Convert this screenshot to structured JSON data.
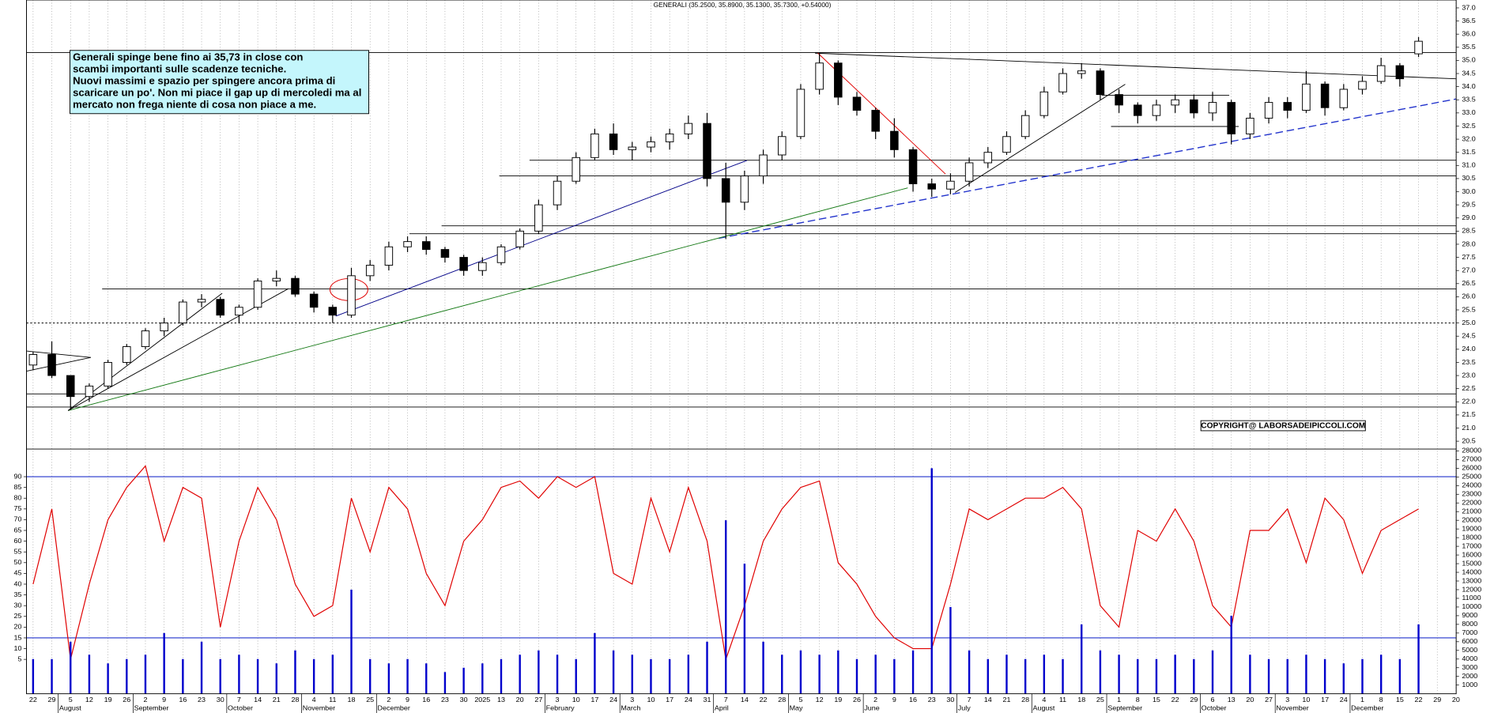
{
  "chart_data": [
    {
      "type": "candlestick",
      "title": "GENERALI (35.2500, 35.8900, 35.1300, 35.7300, +0.54000)",
      "categories": [
        "22",
        "29",
        "5",
        "12",
        "19",
        "26",
        "2",
        "9",
        "16",
        "23",
        "30",
        "7",
        "14",
        "21",
        "28",
        "4",
        "11",
        "18",
        "25",
        "2",
        "9",
        "16",
        "23",
        "30",
        "2025",
        "13",
        "20",
        "27",
        "3",
        "10",
        "17",
        "24",
        "3",
        "10",
        "17",
        "24",
        "31",
        "7",
        "14",
        "22",
        "28",
        "5",
        "12",
        "19",
        "26",
        "2",
        "9",
        "16",
        "23",
        "30",
        "7",
        "14",
        "21",
        "28",
        "4",
        "11",
        "18",
        "25",
        "1",
        "8",
        "15",
        "22",
        "29",
        "6",
        "13",
        "20",
        "27",
        "3",
        "10",
        "17",
        "24",
        "1",
        "8",
        "15",
        "22",
        "29",
        "20"
      ],
      "month_labels": [
        null,
        null,
        "August",
        null,
        null,
        null,
        "September",
        null,
        null,
        null,
        null,
        "October",
        null,
        null,
        null,
        "November",
        null,
        null,
        null,
        "December",
        null,
        null,
        null,
        null,
        null,
        null,
        null,
        null,
        "February",
        null,
        null,
        null,
        "March",
        null,
        null,
        null,
        null,
        "April",
        null,
        null,
        null,
        "May",
        null,
        null,
        null,
        "June",
        null,
        null,
        null,
        null,
        "July",
        null,
        null,
        null,
        "August",
        null,
        null,
        null,
        "September",
        null,
        null,
        null,
        null,
        "October",
        null,
        null,
        null,
        "November",
        null,
        null,
        null,
        "December",
        null,
        null,
        null,
        null,
        null
      ],
      "open": [
        23.4,
        23.8,
        23.0,
        22.2,
        22.6,
        23.5,
        24.1,
        24.7,
        25.0,
        25.8,
        25.9,
        25.3,
        25.6,
        26.6,
        26.7,
        26.1,
        25.6,
        25.3,
        26.8,
        27.2,
        27.9,
        28.1,
        27.8,
        27.5,
        27.0,
        27.3,
        27.9,
        28.5,
        29.5,
        30.4,
        31.3,
        32.2,
        31.6,
        31.7,
        31.9,
        32.2,
        32.6,
        30.5,
        29.6,
        30.6,
        31.4,
        32.1,
        33.9,
        34.9,
        33.6,
        33.1,
        32.3,
        31.6,
        30.3,
        30.1,
        30.4,
        31.1,
        31.5,
        32.1,
        32.9,
        33.8,
        34.5,
        34.6,
        33.7,
        33.3,
        32.9,
        33.3,
        33.5,
        33.0,
        33.4,
        32.2,
        32.8,
        33.4,
        33.1,
        34.1,
        33.2,
        33.9,
        34.2,
        34.8,
        35.25,
        null,
        null
      ],
      "high": [
        23.9,
        24.3,
        23.0,
        22.7,
        23.6,
        24.2,
        24.8,
        25.2,
        25.9,
        26.1,
        26.0,
        25.7,
        26.7,
        27.0,
        26.8,
        26.2,
        25.7,
        27.1,
        27.4,
        28.1,
        28.3,
        28.3,
        27.9,
        27.6,
        27.5,
        28.0,
        28.6,
        29.7,
        30.6,
        31.5,
        32.4,
        32.6,
        31.9,
        32.1,
        32.4,
        32.9,
        33.0,
        31.1,
        30.8,
        31.6,
        32.3,
        34.1,
        35.3,
        35.0,
        33.8,
        33.2,
        32.8,
        31.7,
        30.5,
        30.7,
        31.3,
        31.7,
        32.3,
        33.1,
        34.0,
        34.7,
        34.9,
        34.7,
        33.9,
        33.4,
        33.5,
        33.7,
        33.7,
        33.8,
        33.5,
        33.0,
        33.6,
        33.6,
        34.6,
        34.2,
        34.1,
        34.4,
        35.1,
        34.9,
        35.89,
        null,
        null
      ],
      "low": [
        23.2,
        22.9,
        21.7,
        22.0,
        22.5,
        23.4,
        24.0,
        24.5,
        24.9,
        25.6,
        25.2,
        25.0,
        25.5,
        26.4,
        26.0,
        25.4,
        25.0,
        25.2,
        26.6,
        27.0,
        27.7,
        27.6,
        27.3,
        26.8,
        26.8,
        27.2,
        27.8,
        28.4,
        29.3,
        30.3,
        31.2,
        31.4,
        31.2,
        31.5,
        31.6,
        32.0,
        30.2,
        28.2,
        29.3,
        30.3,
        31.2,
        32.0,
        33.7,
        33.3,
        32.9,
        32.0,
        31.3,
        30.0,
        29.8,
        29.9,
        30.2,
        30.9,
        31.4,
        32.0,
        32.8,
        33.7,
        34.3,
        33.5,
        33.0,
        32.6,
        32.7,
        33.0,
        32.8,
        32.7,
        31.8,
        32.0,
        32.6,
        32.8,
        33.0,
        32.9,
        33.1,
        33.7,
        34.1,
        34.0,
        35.13,
        null,
        null
      ],
      "close": [
        23.8,
        23.0,
        22.2,
        22.6,
        23.5,
        24.1,
        24.7,
        25.0,
        25.8,
        25.9,
        25.3,
        25.6,
        26.6,
        26.7,
        26.1,
        25.6,
        25.3,
        26.8,
        27.2,
        27.9,
        28.1,
        27.8,
        27.5,
        27.0,
        27.3,
        27.9,
        28.5,
        29.5,
        30.4,
        31.3,
        32.2,
        31.6,
        31.7,
        31.9,
        32.2,
        32.6,
        30.5,
        29.6,
        30.6,
        31.4,
        32.1,
        33.9,
        34.9,
        33.6,
        33.1,
        32.3,
        31.6,
        30.3,
        30.1,
        30.4,
        31.1,
        31.5,
        32.1,
        32.9,
        33.8,
        34.5,
        34.6,
        33.7,
        33.3,
        32.9,
        33.3,
        33.5,
        33.0,
        33.4,
        32.2,
        32.8,
        33.4,
        33.1,
        34.1,
        33.2,
        33.9,
        34.2,
        34.8,
        34.3,
        35.73,
        null,
        null
      ],
      "ylim": [
        20.2,
        37.3
      ],
      "yticks": [
        {
          "value": 37,
          "label": "37.0"
        },
        {
          "value": 36.5,
          "label": "36.5"
        },
        {
          "value": 36,
          "label": "36.0"
        },
        {
          "value": 35.5,
          "label": "35.5"
        },
        {
          "value": 35,
          "label": "35.0"
        },
        {
          "value": 34.5,
          "label": "34.5"
        },
        {
          "value": 34,
          "label": "34.0"
        },
        {
          "value": 33.5,
          "label": "33.5"
        },
        {
          "value": 33,
          "label": "33.0"
        },
        {
          "value": 32.5,
          "label": "32.5"
        },
        {
          "value": 32,
          "label": "32.0"
        },
        {
          "value": 31.5,
          "label": "31.5"
        },
        {
          "value": 31,
          "label": "31.0"
        },
        {
          "value": 30.5,
          "label": "30.5"
        },
        {
          "value": 30,
          "label": "30.0"
        },
        {
          "value": 29.5,
          "label": "29.5"
        },
        {
          "value": 29,
          "label": "29.0"
        },
        {
          "value": 28.5,
          "label": "28.5"
        },
        {
          "value": 28,
          "label": "28.0"
        },
        {
          "value": 27.5,
          "label": "27.5"
        },
        {
          "value": 27,
          "label": "27.0"
        },
        {
          "value": 26.5,
          "label": "26.5"
        },
        {
          "value": 26,
          "label": "26.0"
        },
        {
          "value": 25.5,
          "label": "25.5"
        },
        {
          "value": 25,
          "label": "25.0"
        },
        {
          "value": 24.5,
          "label": "24.5"
        },
        {
          "value": 24,
          "label": "24.0"
        },
        {
          "value": 23.5,
          "label": "23.5"
        },
        {
          "value": 23,
          "label": "23.0"
        },
        {
          "value": 22.5,
          "label": "22.5"
        },
        {
          "value": 22,
          "label": "22.0"
        },
        {
          "value": 21.5,
          "label": "21.5"
        },
        {
          "value": 21,
          "label": "21.0"
        },
        {
          "value": 20.5,
          "label": "20.5"
        }
      ],
      "levels": [
        35.3,
        31.2,
        30.6,
        28.7,
        28.4,
        26.3,
        25.0,
        22.3,
        21.8
      ],
      "note": [
        "Generali spinge bene fino ai 35,73 in close con",
        "scambi importanti sulle scadenze tecniche.",
        "Nuovi massimi e spazio per spingere ancora prima di",
        "scaricare un po'. Non mi piace il gap up di mercoledi ma al",
        "mercato non frega niente di cosa non piace a me."
      ],
      "copyright": "COPYRIGHT@ LABORSADEIPICCOLI.COM"
    },
    {
      "type": "indicator",
      "series": [
        {
          "type": "line",
          "color": "#e00000",
          "values": [
            40,
            75,
            5,
            40,
            70,
            85,
            95,
            60,
            85,
            80,
            20,
            60,
            85,
            70,
            40,
            25,
            30,
            80,
            55,
            85,
            75,
            45,
            30,
            60,
            70,
            85,
            88,
            80,
            90,
            85,
            90,
            45,
            40,
            80,
            55,
            85,
            60,
            5,
            30,
            60,
            75,
            85,
            88,
            50,
            40,
            25,
            15,
            10,
            10,
            40,
            75,
            70,
            75,
            80,
            80,
            85,
            75,
            30,
            20,
            65,
            60,
            75,
            60,
            30,
            20,
            65,
            65,
            75,
            50,
            80,
            70,
            45,
            65,
            70,
            75,
            null,
            null
          ]
        },
        {
          "type": "bar",
          "color": "#0000cc",
          "axis": "y2",
          "values": [
            4000,
            4000,
            6000,
            4500,
            3500,
            4000,
            4500,
            7000,
            4000,
            6000,
            4000,
            4500,
            4000,
            3500,
            5000,
            4000,
            4500,
            12000,
            4000,
            3500,
            4000,
            3500,
            2500,
            3000,
            3500,
            4000,
            4500,
            5000,
            4500,
            4000,
            7000,
            5000,
            4500,
            4000,
            4000,
            4500,
            6000,
            20000,
            15000,
            6000,
            4500,
            5000,
            4500,
            5000,
            4000,
            4500,
            4000,
            5000,
            26000,
            10000,
            5000,
            4000,
            4500,
            4000,
            4500,
            4000,
            8000,
            5000,
            4500,
            4000,
            4000,
            4500,
            4000,
            5000,
            9000,
            4500,
            4000,
            4000,
            4500,
            4000,
            3500,
            4000,
            4500,
            4000,
            8000,
            null,
            null
          ]
        }
      ],
      "ylim": [
        -11,
        102
      ],
      "yticks": [
        5,
        10,
        15,
        20,
        25,
        30,
        35,
        40,
        45,
        50,
        55,
        60,
        65,
        70,
        75,
        80,
        85,
        90
      ],
      "y2lim": [
        0,
        28000
      ],
      "y2ticks": [
        1000,
        2000,
        3000,
        4000,
        5000,
        6000,
        7000,
        8000,
        9000,
        10000,
        11000,
        12000,
        13000,
        14000,
        15000,
        16000,
        17000,
        18000,
        19000,
        20000,
        21000,
        22000,
        23000,
        24000,
        25000,
        26000,
        27000,
        28000
      ],
      "reference_lines": [
        90,
        15
      ]
    }
  ]
}
